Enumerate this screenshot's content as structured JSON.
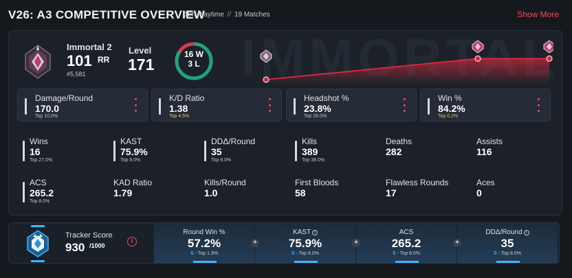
{
  "header": {
    "title": "V26: A3 COMPETITIVE OVERVIEW",
    "playtime": "10h Playtime",
    "sep": "//",
    "matches": "19 Matches",
    "show_more": "Show More"
  },
  "overview": {
    "watermark": "IMMORTAL",
    "rank": {
      "name": "Immortal 2",
      "rr": "101",
      "rr_label": "RR",
      "position": "#5,581",
      "icon": "immortal-rank-icon"
    },
    "level": {
      "label": "Level",
      "value": "171"
    },
    "win_loss": {
      "wins": "16 W",
      "losses": "3 L",
      "win_fraction": 0.842
    },
    "rank_trend": {
      "points": [
        0.0,
        0.9,
        0.9
      ],
      "icons": [
        "radiant-gem-icon",
        "immortal-gem-icon",
        "immortal-gem-icon"
      ]
    },
    "cards": [
      {
        "label": "Damage/Round",
        "value": "170.0",
        "sub": "Top 10.0%",
        "highlight": false
      },
      {
        "label": "K/D Ratio",
        "value": "1.38",
        "sub": "Top 4.5%",
        "highlight": true
      },
      {
        "label": "Headshot %",
        "value": "23.8%",
        "sub": "Top 28.0%",
        "highlight": false
      },
      {
        "label": "Win %",
        "value": "84.2%",
        "sub": "Top 0.2%",
        "highlight": true
      }
    ],
    "stats_row1": [
      {
        "label": "Wins",
        "value": "16",
        "sub": "Top 27.0%",
        "bar": true
      },
      {
        "label": "KAST",
        "value": "75.9%",
        "sub": "Top 8.0%",
        "bar": true
      },
      {
        "label": "DDΔ/Round",
        "value": "35",
        "sub": "Top 8.0%",
        "bar": true
      },
      {
        "label": "Kills",
        "value": "389",
        "sub": "Top 38.0%",
        "bar": true
      },
      {
        "label": "Deaths",
        "value": "282",
        "sub": "",
        "bar": false
      },
      {
        "label": "Assists",
        "value": "116",
        "sub": "",
        "bar": false
      }
    ],
    "stats_row2": [
      {
        "label": "ACS",
        "value": "265.2",
        "sub": "Top 8.0%",
        "bar": true
      },
      {
        "label": "KAD Ratio",
        "value": "1.79",
        "sub": "",
        "bar": false
      },
      {
        "label": "Kills/Round",
        "value": "1.0",
        "sub": "",
        "bar": false
      },
      {
        "label": "First Bloods",
        "value": "58",
        "sub": "",
        "bar": false
      },
      {
        "label": "Flawless Rounds",
        "value": "17",
        "sub": "",
        "bar": false
      },
      {
        "label": "Aces",
        "value": "0",
        "sub": "",
        "bar": false
      }
    ]
  },
  "tracker": {
    "label": "Tracker Score",
    "score": "930",
    "max": "/1000",
    "info_icon": "info-icon",
    "cells": [
      {
        "label": "Round Win %",
        "value": "57.2%",
        "grade": "S",
        "sub": "Top 1.3%",
        "info": false
      },
      {
        "label": "KAST",
        "value": "75.9%",
        "grade": "S",
        "sub": "Top 8.0%",
        "info": true
      },
      {
        "label": "ACS",
        "value": "265.2",
        "grade": "S",
        "sub": "Top 8.0%",
        "info": false
      },
      {
        "label": "DDΔ/Round",
        "value": "35",
        "grade": "S",
        "sub": "Top 8.0%",
        "info": true
      }
    ],
    "plus": "+"
  },
  "colors": {
    "accent": "#ff4655",
    "win": "#1fa37a",
    "loss": "#d93b4a",
    "tier": "#3fb6ff"
  }
}
